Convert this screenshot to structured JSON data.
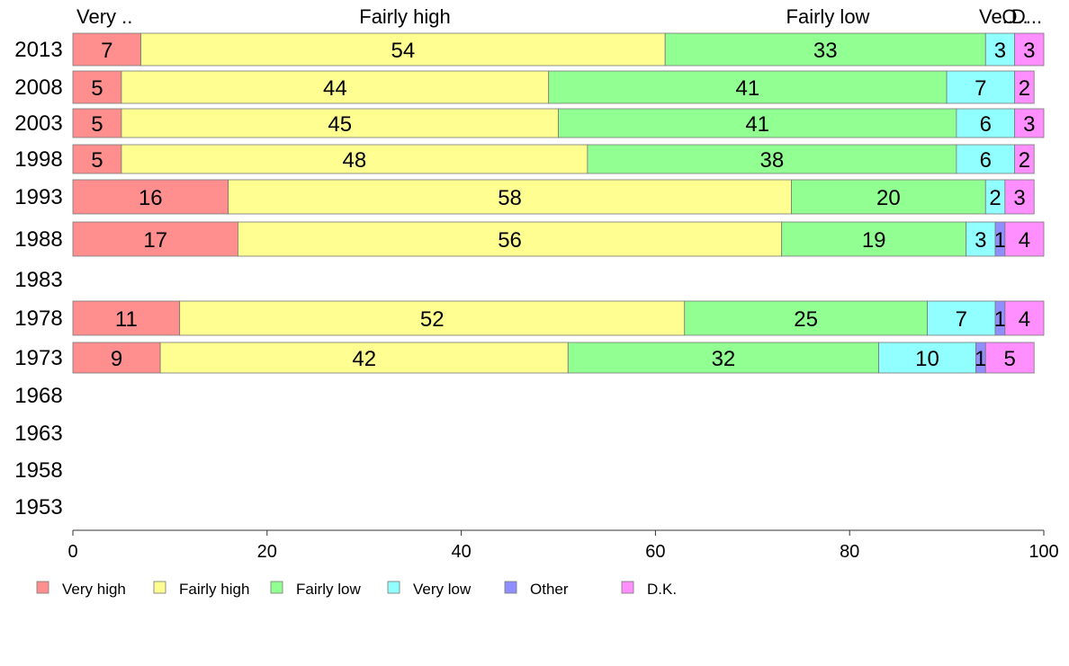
{
  "chart_data": {
    "type": "bar",
    "orientation": "horizontal",
    "stacked": true,
    "categories": [
      "2013",
      "2008",
      "2003",
      "1998",
      "1993",
      "1988",
      "1983",
      "1978",
      "1973",
      "1968",
      "1963",
      "1958",
      "1953"
    ],
    "series": [
      {
        "name": "Very high",
        "color": "#ff8f8f",
        "values": [
          7,
          5,
          5,
          5,
          16,
          17,
          null,
          11,
          9,
          null,
          null,
          null,
          null
        ]
      },
      {
        "name": "Fairly high",
        "color": "#ffff91",
        "values": [
          54,
          44,
          45,
          48,
          58,
          56,
          null,
          52,
          42,
          null,
          null,
          null,
          null
        ]
      },
      {
        "name": "Fairly low",
        "color": "#91ff91",
        "values": [
          33,
          41,
          41,
          38,
          20,
          19,
          null,
          25,
          32,
          null,
          null,
          null,
          null
        ]
      },
      {
        "name": "Very low",
        "color": "#91ffff",
        "values": [
          3,
          7,
          6,
          6,
          2,
          3,
          null,
          7,
          10,
          null,
          null,
          null,
          null
        ]
      },
      {
        "name": "Other",
        "color": "#8f8fff",
        "values": [
          0,
          0,
          0,
          0,
          0,
          1,
          null,
          1,
          1,
          null,
          null,
          null,
          null
        ]
      },
      {
        "name": "D.K.",
        "color": "#ff8fff",
        "values": [
          3,
          2,
          3,
          2,
          3,
          4,
          null,
          4,
          5,
          null,
          null,
          null,
          null
        ]
      }
    ],
    "header_labels": [
      "Very ..",
      "Fairly high",
      "Fairly low",
      "Ve..",
      "O..",
      "D..."
    ],
    "xlim": [
      0,
      100
    ],
    "xticks": [
      0,
      20,
      40,
      60,
      80,
      100
    ],
    "legend_position": "bottom",
    "grid": false
  }
}
